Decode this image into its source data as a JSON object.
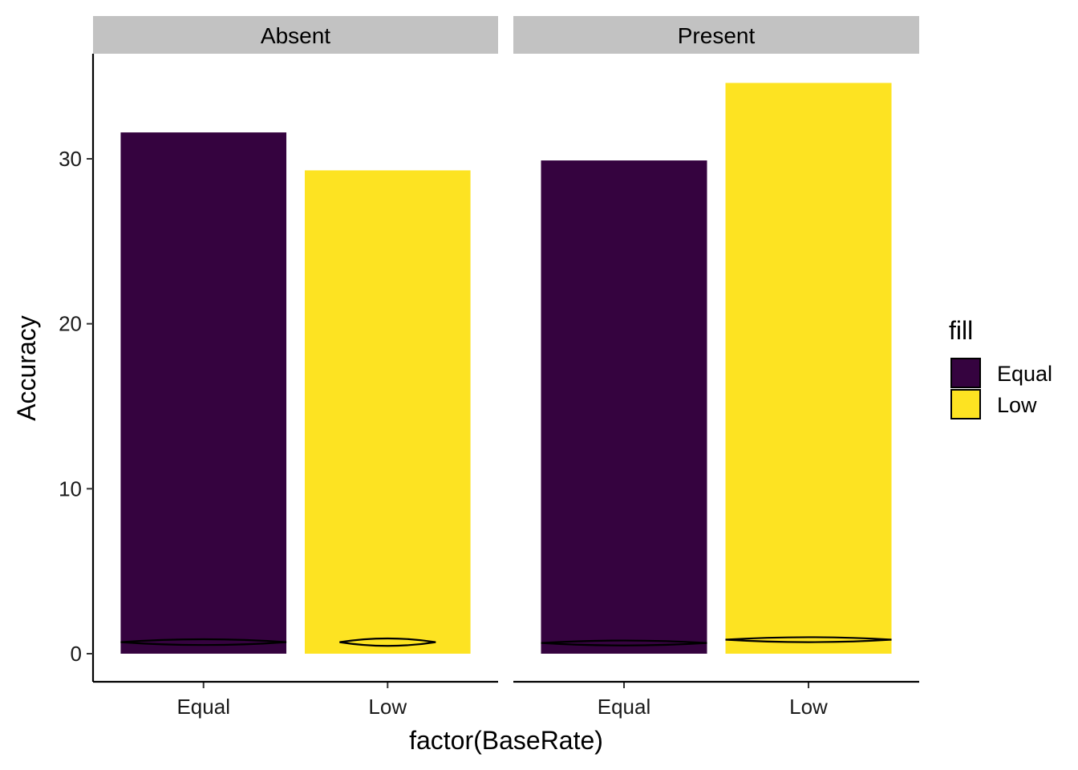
{
  "chart_data": {
    "type": "bar",
    "facet_variable": "",
    "facets": [
      "Absent",
      "Present"
    ],
    "categories": [
      "Equal",
      "Low"
    ],
    "xlabel": "factor(BaseRate)",
    "ylabel": "Accuracy",
    "ylim": [
      0,
      36
    ],
    "yticks": [
      0,
      10,
      20,
      30
    ],
    "grid": false,
    "legend": {
      "title": "fill",
      "position": "right",
      "entries": [
        {
          "label": "Equal",
          "color": "#35033f"
        },
        {
          "label": "Low",
          "color": "#fde322"
        }
      ]
    },
    "series": [
      {
        "facet": "Absent",
        "values": [
          31.6,
          29.3
        ]
      },
      {
        "facet": "Present",
        "values": [
          29.9,
          34.6
        ]
      }
    ],
    "violin_overlay": [
      {
        "facet": "Absent",
        "category": "Equal",
        "y_center": 0.7,
        "spread": 0.35
      },
      {
        "facet": "Absent",
        "category": "Low",
        "y_center": 0.7,
        "spread": 0.45
      },
      {
        "facet": "Present",
        "category": "Equal",
        "y_center": 0.65,
        "spread": 0.3
      },
      {
        "facet": "Present",
        "category": "Low",
        "y_center": 0.85,
        "spread": 0.3
      }
    ],
    "colors": {
      "Equal": "#35033f",
      "Low": "#fde322",
      "strip_background": "#c2c2c2",
      "axis": "#000000"
    }
  }
}
